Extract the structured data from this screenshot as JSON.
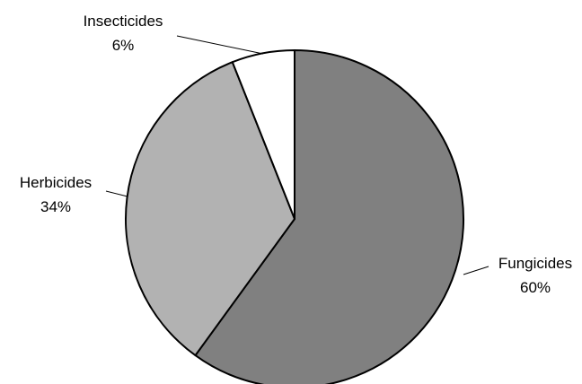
{
  "chart_data": {
    "type": "pie",
    "title": "",
    "slices": [
      {
        "label": "Fungicides",
        "value": 60,
        "value_label": "60%",
        "color": "#808080"
      },
      {
        "label": "Herbicides",
        "value": 34,
        "value_label": "34%",
        "color": "#b2b2b2"
      },
      {
        "label": "Insecticides",
        "value": 6,
        "value_label": "6%",
        "color": "#ffffff"
      }
    ],
    "start": "12 o'clock",
    "direction": "clockwise",
    "legend": "none",
    "labels": "outside with leader lines"
  }
}
